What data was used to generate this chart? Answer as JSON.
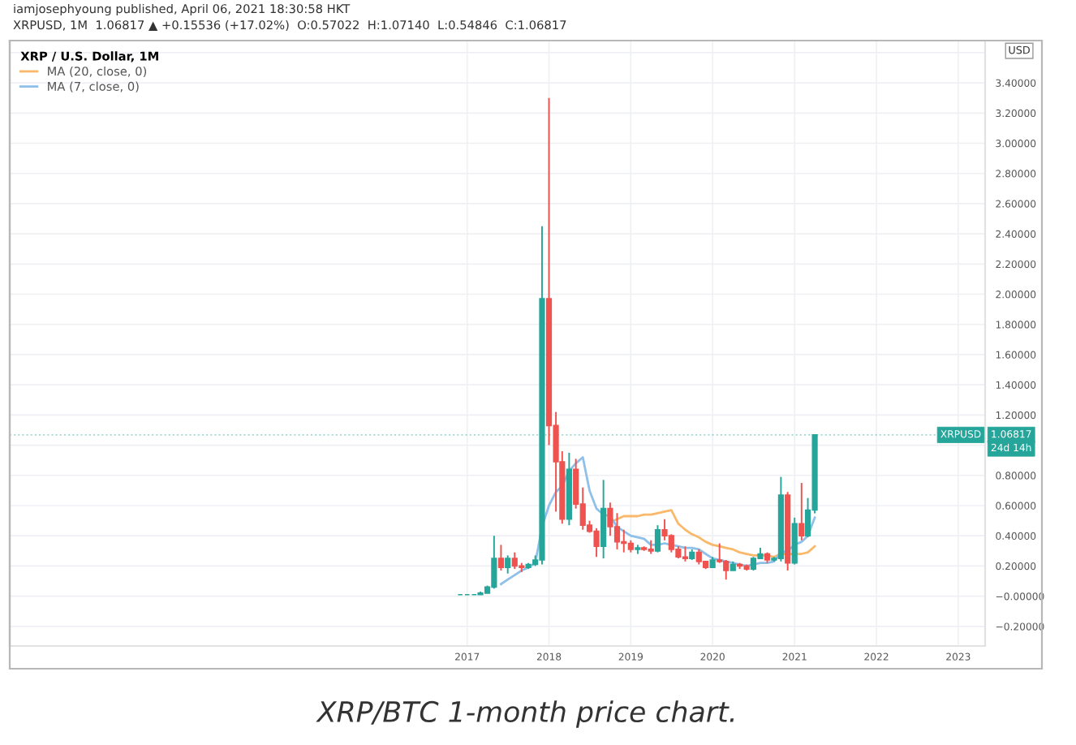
{
  "chart_data": {
    "type": "candlestick",
    "title": "iamjosephyoung published, April 06, 2021 18:30:58 HKT",
    "subtitle": "XRPUSD, 1M  1.06817 ▲ +0.15536 (+17.02%)  O:0.57022  H:1.07140  L:0.54846  C:1.06817",
    "legend_title": "XRP / U.S. Dollar, 1M",
    "ylabel": "USD",
    "x": [
      "2016-12",
      "2017-01",
      "2017-02",
      "2017-03",
      "2017-04",
      "2017-05",
      "2017-06",
      "2017-07",
      "2017-08",
      "2017-09",
      "2017-10",
      "2017-11",
      "2017-12",
      "2018-01",
      "2018-02",
      "2018-03",
      "2018-04",
      "2018-05",
      "2018-06",
      "2018-07",
      "2018-08",
      "2018-09",
      "2018-10",
      "2018-11",
      "2018-12",
      "2019-01",
      "2019-02",
      "2019-03",
      "2019-04",
      "2019-05",
      "2019-06",
      "2019-07",
      "2019-08",
      "2019-09",
      "2019-10",
      "2019-11",
      "2019-12",
      "2020-01",
      "2020-02",
      "2020-03",
      "2020-04",
      "2020-05",
      "2020-06",
      "2020-07",
      "2020-08",
      "2020-09",
      "2020-10",
      "2020-11",
      "2020-12",
      "2021-01",
      "2021-02",
      "2021-03",
      "2021-04"
    ],
    "ohlc": [
      [
        0.01,
        0.01,
        0.01,
        0.01
      ],
      [
        0.01,
        0.01,
        0.01,
        0.01
      ],
      [
        0.01,
        0.01,
        0.01,
        0.01
      ],
      [
        0.01,
        0.03,
        0.01,
        0.02
      ],
      [
        0.02,
        0.07,
        0.02,
        0.06
      ],
      [
        0.06,
        0.4,
        0.05,
        0.25
      ],
      [
        0.25,
        0.34,
        0.17,
        0.19
      ],
      [
        0.19,
        0.27,
        0.15,
        0.25
      ],
      [
        0.25,
        0.29,
        0.18,
        0.2
      ],
      [
        0.2,
        0.22,
        0.16,
        0.19
      ],
      [
        0.19,
        0.22,
        0.18,
        0.21
      ],
      [
        0.21,
        0.27,
        0.2,
        0.24
      ],
      [
        0.24,
        2.45,
        0.21,
        1.97
      ],
      [
        1.97,
        3.3,
        1.0,
        1.13
      ],
      [
        1.13,
        1.22,
        0.56,
        0.89
      ],
      [
        0.89,
        0.96,
        0.48,
        0.51
      ],
      [
        0.51,
        0.95,
        0.47,
        0.84
      ],
      [
        0.84,
        0.91,
        0.58,
        0.61
      ],
      [
        0.61,
        0.72,
        0.44,
        0.47
      ],
      [
        0.47,
        0.5,
        0.42,
        0.43
      ],
      [
        0.43,
        0.45,
        0.26,
        0.33
      ],
      [
        0.33,
        0.77,
        0.25,
        0.58
      ],
      [
        0.58,
        0.62,
        0.4,
        0.46
      ],
      [
        0.46,
        0.55,
        0.31,
        0.36
      ],
      [
        0.36,
        0.44,
        0.29,
        0.35
      ],
      [
        0.35,
        0.37,
        0.29,
        0.31
      ],
      [
        0.31,
        0.34,
        0.28,
        0.32
      ],
      [
        0.32,
        0.33,
        0.3,
        0.31
      ],
      [
        0.31,
        0.37,
        0.28,
        0.3
      ],
      [
        0.3,
        0.47,
        0.29,
        0.44
      ],
      [
        0.44,
        0.51,
        0.37,
        0.4
      ],
      [
        0.4,
        0.41,
        0.29,
        0.31
      ],
      [
        0.31,
        0.33,
        0.25,
        0.26
      ],
      [
        0.26,
        0.33,
        0.23,
        0.25
      ],
      [
        0.25,
        0.31,
        0.24,
        0.29
      ],
      [
        0.29,
        0.31,
        0.21,
        0.23
      ],
      [
        0.23,
        0.23,
        0.18,
        0.19
      ],
      [
        0.19,
        0.26,
        0.19,
        0.24
      ],
      [
        0.24,
        0.35,
        0.22,
        0.23
      ],
      [
        0.23,
        0.24,
        0.11,
        0.17
      ],
      [
        0.17,
        0.23,
        0.17,
        0.21
      ],
      [
        0.21,
        0.22,
        0.18,
        0.2
      ],
      [
        0.2,
        0.21,
        0.17,
        0.18
      ],
      [
        0.18,
        0.26,
        0.17,
        0.25
      ],
      [
        0.25,
        0.32,
        0.25,
        0.28
      ],
      [
        0.28,
        0.29,
        0.22,
        0.24
      ],
      [
        0.24,
        0.26,
        0.23,
        0.25
      ],
      [
        0.25,
        0.79,
        0.23,
        0.67
      ],
      [
        0.67,
        0.69,
        0.17,
        0.22
      ],
      [
        0.22,
        0.52,
        0.21,
        0.48
      ],
      [
        0.48,
        0.75,
        0.37,
        0.4
      ],
      [
        0.4,
        0.65,
        0.39,
        0.57
      ],
      [
        0.57022,
        1.0714,
        0.54846,
        1.06817
      ]
    ],
    "colors": [
      "#26a69a",
      "#26a69a",
      "#26a69a",
      "#26a69a",
      "#26a69a",
      "#26a69a",
      "#ef5350",
      "#26a69a",
      "#ef5350",
      "#ef5350",
      "#26a69a",
      "#26a69a",
      "#26a69a",
      "#ef5350",
      "#ef5350",
      "#ef5350",
      "#26a69a",
      "#ef5350",
      "#ef5350",
      "#ef5350",
      "#ef5350",
      "#26a69a",
      "#ef5350",
      "#ef5350",
      "#ef5350",
      "#ef5350",
      "#26a69a",
      "#ef5350",
      "#ef5350",
      "#26a69a",
      "#ef5350",
      "#ef5350",
      "#ef5350",
      "#ef5350",
      "#26a69a",
      "#ef5350",
      "#ef5350",
      "#26a69a",
      "#ef5350",
      "#ef5350",
      "#26a69a",
      "#ef5350",
      "#ef5350",
      "#26a69a",
      "#26a69a",
      "#ef5350",
      "#26a69a",
      "#26a69a",
      "#ef5350",
      "#26a69a",
      "#ef5350",
      "#26a69a",
      "#26a69a"
    ],
    "series": [
      {
        "name": "MA (20, close, 0)",
        "type": "line",
        "color": "#f9b86a",
        "values": [
          null,
          null,
          null,
          null,
          null,
          null,
          null,
          null,
          null,
          null,
          null,
          null,
          null,
          null,
          null,
          null,
          null,
          null,
          null,
          null,
          null,
          null,
          0.49,
          0.51,
          0.53,
          0.53,
          0.53,
          0.54,
          0.54,
          0.55,
          0.56,
          0.57,
          0.48,
          0.44,
          0.41,
          0.39,
          0.36,
          0.34,
          0.33,
          0.32,
          0.31,
          0.29,
          0.28,
          0.27,
          0.27,
          0.27,
          0.26,
          0.28,
          0.28,
          0.28,
          0.28,
          0.29,
          0.33
        ]
      },
      {
        "name": "MA (7, close, 0)",
        "type": "line",
        "color": "#8ec0ea",
        "values": [
          null,
          null,
          null,
          null,
          null,
          null,
          0.08,
          0.11,
          0.14,
          0.17,
          0.19,
          0.22,
          0.46,
          0.6,
          0.69,
          0.73,
          0.83,
          0.88,
          0.92,
          0.7,
          0.58,
          0.54,
          0.53,
          0.46,
          0.43,
          0.4,
          0.39,
          0.38,
          0.34,
          0.34,
          0.35,
          0.34,
          0.33,
          0.32,
          0.32,
          0.31,
          0.28,
          0.25,
          0.24,
          0.23,
          0.22,
          0.21,
          0.2,
          0.21,
          0.22,
          0.22,
          0.23,
          0.29,
          0.3,
          0.34,
          0.36,
          0.4,
          0.52
        ]
      }
    ],
    "xlim": [
      "2011-06",
      "2023-05"
    ],
    "xticks": [
      "2017",
      "2018",
      "2019",
      "2020",
      "2021",
      "2022",
      "2023"
    ],
    "ylim": [
      -0.33,
      3.68
    ],
    "yticks": [
      {
        "value": -0.2,
        "label": "−0.20000"
      },
      {
        "value": 0,
        "label": "−0.00000"
      },
      {
        "value": 0.2,
        "label": "0.20000"
      },
      {
        "value": 0.4,
        "label": "0.40000"
      },
      {
        "value": 0.6,
        "label": "0.60000"
      },
      {
        "value": 0.8,
        "label": "0.80000"
      },
      {
        "value": 1.0,
        "label": null
      },
      {
        "value": 1.2,
        "label": "1.20000"
      },
      {
        "value": 1.4,
        "label": "1.40000"
      },
      {
        "value": 1.6,
        "label": "1.60000"
      },
      {
        "value": 1.8,
        "label": "1.80000"
      },
      {
        "value": 2.0,
        "label": "2.00000"
      },
      {
        "value": 2.2,
        "label": "2.20000"
      },
      {
        "value": 2.4,
        "label": "2.40000"
      },
      {
        "value": 2.6,
        "label": "2.60000"
      },
      {
        "value": 2.8,
        "label": "2.80000"
      },
      {
        "value": 3.0,
        "label": "3.00000"
      },
      {
        "value": 3.2,
        "label": "3.20000"
      },
      {
        "value": 3.4,
        "label": "3.40000"
      },
      {
        "value": 3.6,
        "label": null
      }
    ],
    "ref_lines": [
      {
        "axis": "y",
        "value": 1.06817,
        "label": "XRPUSD",
        "color": "#26a69a",
        "line_style": "dotted"
      }
    ],
    "annotations": [
      "1.06817",
      "24d 14h",
      "XRP/BTC 1-month price chart."
    ],
    "grid": true,
    "legend": "top left"
  }
}
